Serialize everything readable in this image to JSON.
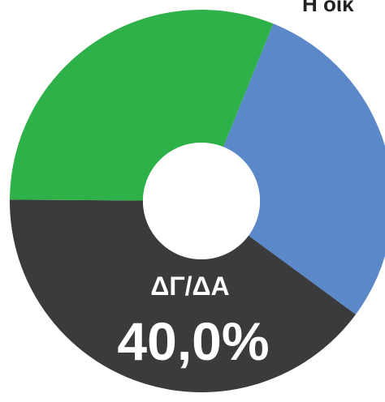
{
  "chart_data": {
    "type": "donut",
    "title": "Η οικ",
    "categories": [
      null,
      null,
      "ΔΓ/ΔΑ"
    ],
    "values": [
      29,
      40,
      31
    ],
    "value_labels": [
      null,
      "40,0%",
      null
    ],
    "colors": [
      "#5b88c9",
      "#393b3d",
      "#2fb14a"
    ]
  }
}
